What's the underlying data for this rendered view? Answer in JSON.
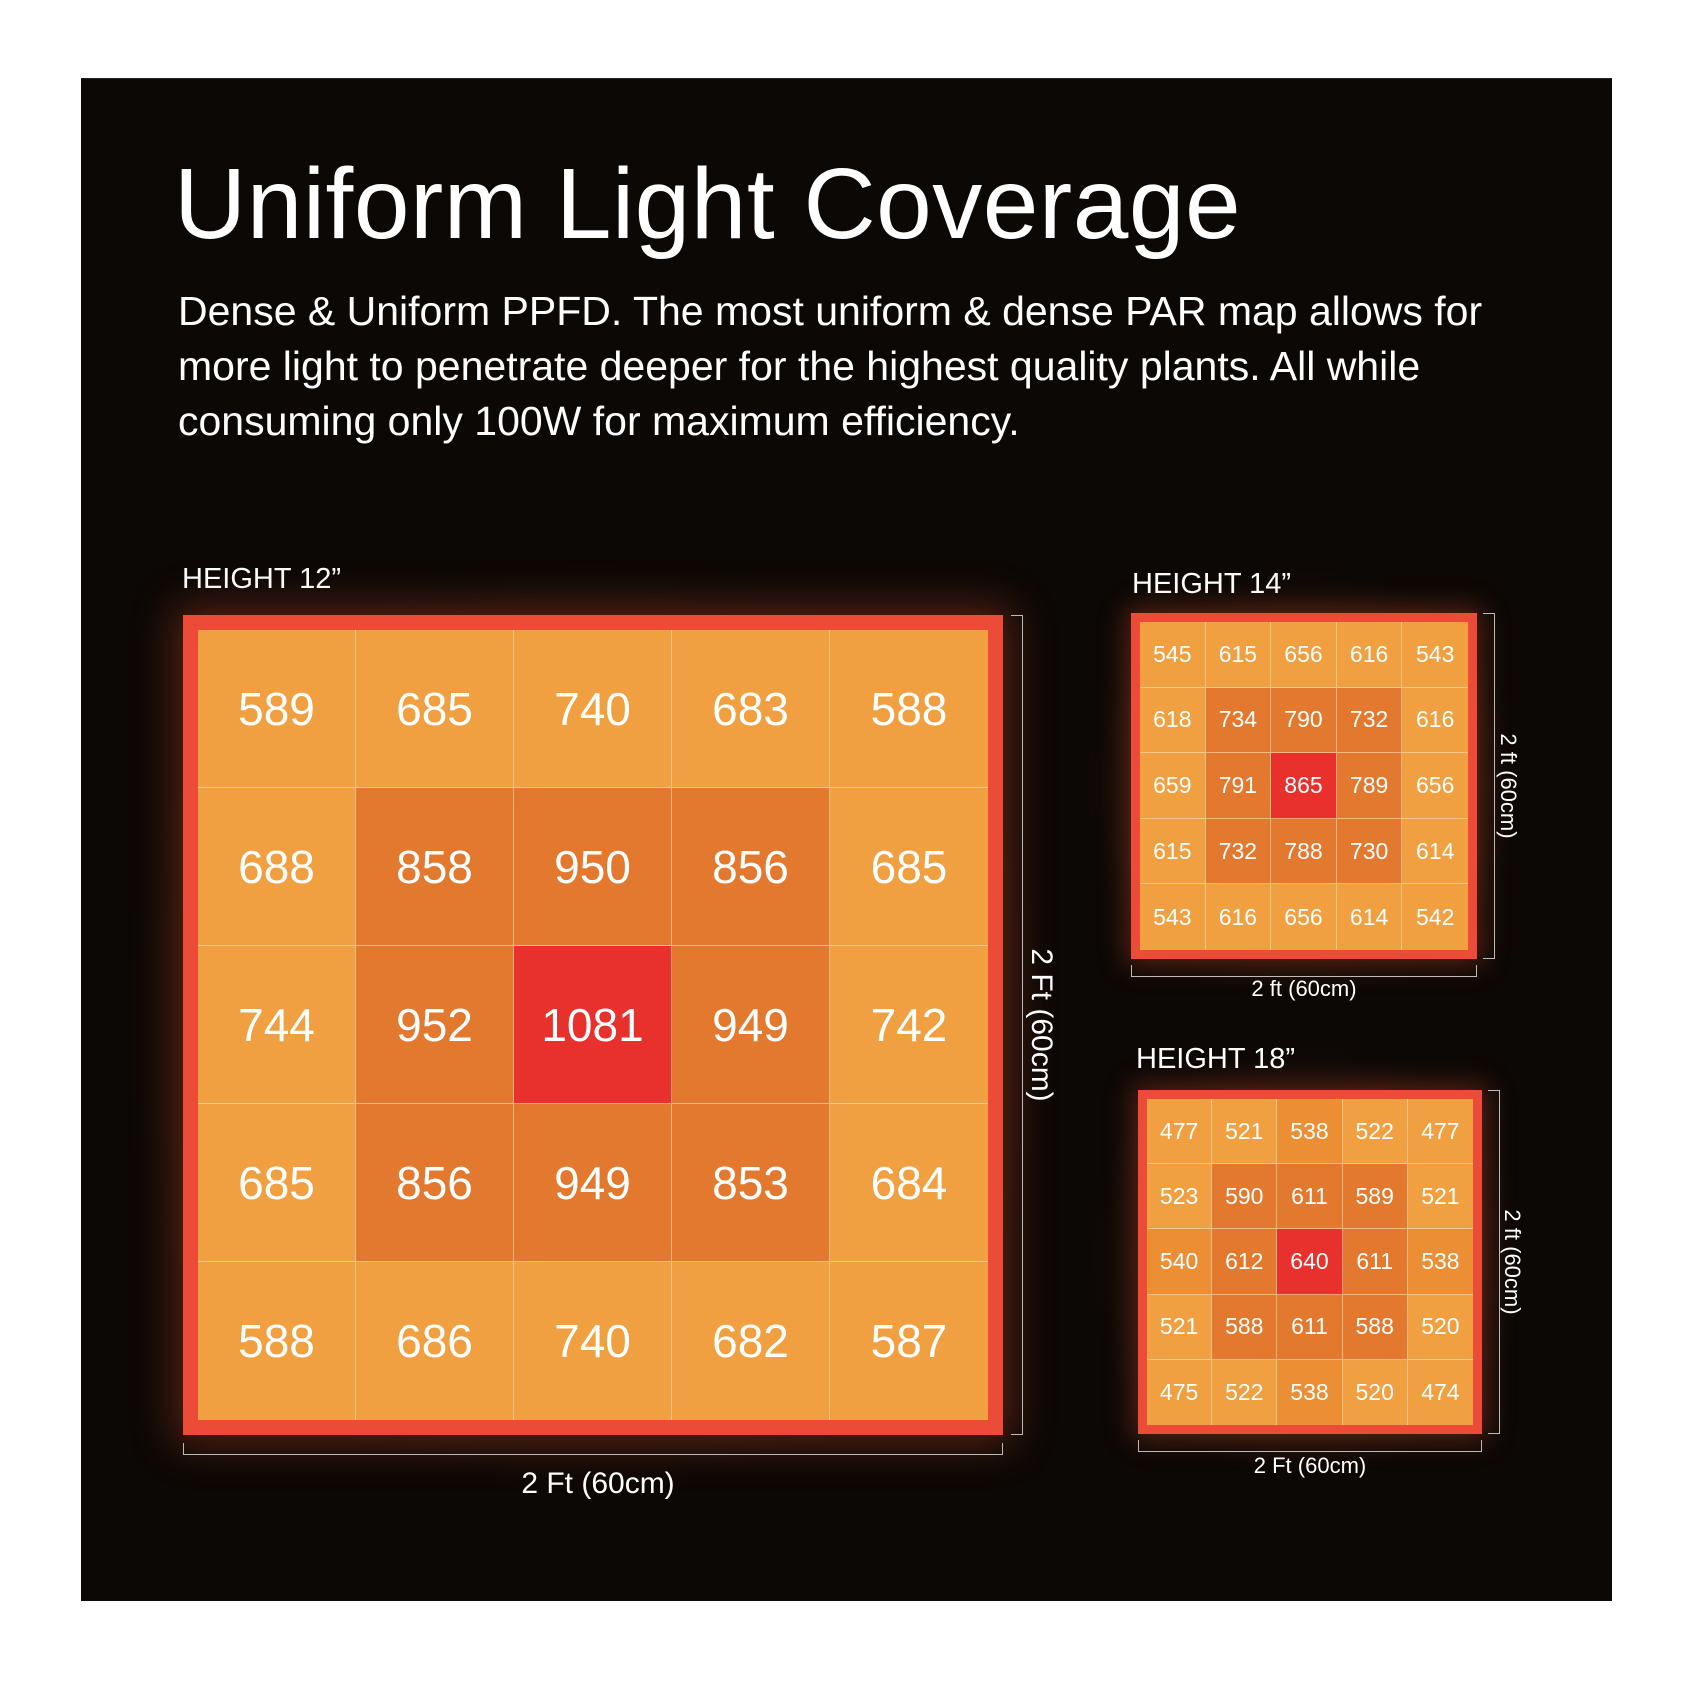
{
  "title": "Uniform Light Coverage",
  "subtitle": "Dense & Uniform PPFD.  The most uniform & dense PAR map allows for more light to penetrate deeper for the highest quality plants. All while consuming only 100W for maximum efficiency.",
  "colors": {
    "background": "#0c0806",
    "frame": "#ec4b38",
    "scale": [
      "#f0a040",
      "#ec8e34",
      "#e3792e",
      "#e8312c"
    ]
  },
  "chart_data": [
    {
      "type": "heatmap",
      "title": "HEIGHT 12”",
      "xlabel": "2 Ft (60cm)",
      "ylabel": "2 Ft (60cm)",
      "values": [
        [
          589,
          685,
          740,
          683,
          588
        ],
        [
          688,
          858,
          950,
          856,
          685
        ],
        [
          744,
          952,
          1081,
          949,
          742
        ],
        [
          685,
          856,
          949,
          853,
          684
        ],
        [
          588,
          686,
          740,
          682,
          587
        ]
      ]
    },
    {
      "type": "heatmap",
      "title": "HEIGHT 14”",
      "xlabel": "2 ft (60cm)",
      "ylabel": "2 ft (60cm)",
      "values": [
        [
          545,
          615,
          656,
          616,
          543
        ],
        [
          618,
          734,
          790,
          732,
          616
        ],
        [
          659,
          791,
          865,
          789,
          656
        ],
        [
          615,
          732,
          788,
          730,
          614
        ],
        [
          543,
          616,
          656,
          614,
          542
        ]
      ]
    },
    {
      "type": "heatmap",
      "title": "HEIGHT 18”",
      "xlabel": "2 Ft (60cm)",
      "ylabel": "2 ft (60cm)",
      "values": [
        [
          477,
          521,
          538,
          522,
          477
        ],
        [
          523,
          590,
          611,
          589,
          521
        ],
        [
          540,
          612,
          640,
          611,
          538
        ],
        [
          521,
          588,
          611,
          588,
          520
        ],
        [
          475,
          522,
          538,
          520,
          474
        ]
      ]
    }
  ]
}
